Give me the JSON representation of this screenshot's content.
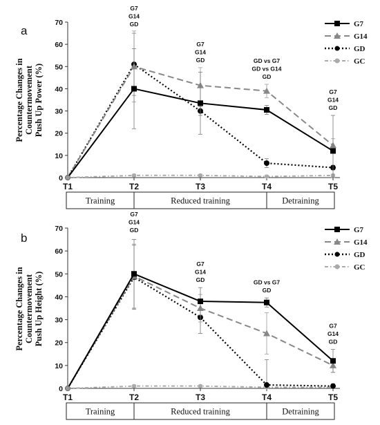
{
  "chart_data": [
    {
      "type": "line",
      "panel_label": "a",
      "ylabel": [
        "Percentage Changes in",
        "Countermovement",
        "Push Up Power (%)"
      ],
      "categories": [
        "T1",
        "T2",
        "T3",
        "T4",
        "T5"
      ],
      "ylim": [
        0,
        70
      ],
      "yticks": [
        0,
        10,
        20,
        30,
        40,
        50,
        60,
        70
      ],
      "grid": false,
      "legend_position": "top-right",
      "series": [
        {
          "name": "G7",
          "values": [
            0,
            40,
            33.5,
            30.5,
            12
          ],
          "err": [
            0,
            18,
            14,
            2,
            16
          ],
          "color": "#000000",
          "dash": "solid",
          "marker": "square"
        },
        {
          "name": "G14",
          "values": [
            0,
            50,
            41.5,
            39,
            14.5
          ],
          "err": [
            0,
            16,
            8,
            3,
            3
          ],
          "color": "#888888",
          "dash": "dashed",
          "marker": "triangle"
        },
        {
          "name": "GD",
          "values": [
            0,
            51,
            30,
            6.5,
            4.5
          ],
          "err": [
            0,
            14,
            2,
            2,
            1
          ],
          "color": "#000000",
          "dash": "dotted",
          "marker": "circle"
        },
        {
          "name": "GC",
          "values": [
            0,
            1,
            1,
            0.5,
            1
          ],
          "err": [
            0,
            0.5,
            0.5,
            0.5,
            0.5
          ],
          "color": "#aaaaaa",
          "dash": "dashdot",
          "marker": "circle"
        }
      ],
      "annotations": [
        {
          "x": "T2",
          "lines": [
            "G7",
            "G14",
            "GD"
          ]
        },
        {
          "x": "T3",
          "lines": [
            "G7",
            "G14",
            "GD"
          ]
        },
        {
          "x": "T4",
          "lines": [
            "GD vs G7",
            "GD vs G14",
            "GD"
          ]
        },
        {
          "x": "T5",
          "lines": [
            "G7",
            "G14",
            "GD"
          ]
        }
      ],
      "phases": [
        {
          "label": "Training",
          "from": "T1",
          "to": "T2"
        },
        {
          "label": "Reduced training",
          "from": "T2",
          "to": "T4"
        },
        {
          "label": "Detraining",
          "from": "T4",
          "to": "T5"
        }
      ]
    },
    {
      "type": "line",
      "panel_label": "b",
      "ylabel": [
        "Percentage Changes in",
        "Countermovement",
        "Push Up Height (%)"
      ],
      "categories": [
        "T1",
        "T2",
        "T3",
        "T4",
        "T5"
      ],
      "ylim": [
        0,
        70
      ],
      "yticks": [
        0,
        10,
        20,
        30,
        40,
        50,
        60,
        70
      ],
      "grid": false,
      "legend_position": "top-right",
      "series": [
        {
          "name": "G7",
          "values": [
            0,
            50,
            38,
            37.5,
            12
          ],
          "err": [
            0,
            15,
            6,
            2,
            5
          ],
          "color": "#000000",
          "dash": "solid",
          "marker": "square"
        },
        {
          "name": "G14",
          "values": [
            0,
            49,
            35,
            24,
            10
          ],
          "err": [
            0,
            14,
            6,
            9,
            3
          ],
          "color": "#888888",
          "dash": "dashed",
          "marker": "triangle"
        },
        {
          "name": "GD",
          "values": [
            0,
            48.5,
            31,
            1.5,
            1
          ],
          "err": [
            0,
            14,
            7,
            11,
            1
          ],
          "color": "#000000",
          "dash": "dotted",
          "marker": "circle"
        },
        {
          "name": "GC",
          "values": [
            0,
            1,
            1,
            0.5,
            0.5
          ],
          "err": [
            0,
            0.5,
            0.5,
            0.5,
            0.5
          ],
          "color": "#aaaaaa",
          "dash": "dashdot",
          "marker": "circle"
        }
      ],
      "annotations": [
        {
          "x": "T2",
          "lines": [
            "G7",
            "G14",
            "GD"
          ]
        },
        {
          "x": "T3",
          "lines": [
            "G7",
            "G14",
            "GD"
          ]
        },
        {
          "x": "T4",
          "lines": [
            "GD vs G7",
            "GD"
          ]
        },
        {
          "x": "T5",
          "lines": [
            "G7",
            "G14",
            "GD"
          ]
        }
      ],
      "phases": [
        {
          "label": "Training",
          "from": "T1",
          "to": "T2"
        },
        {
          "label": "Reduced training",
          "from": "T2",
          "to": "T4"
        },
        {
          "label": "Detraining",
          "from": "T4",
          "to": "T5"
        }
      ]
    }
  ]
}
